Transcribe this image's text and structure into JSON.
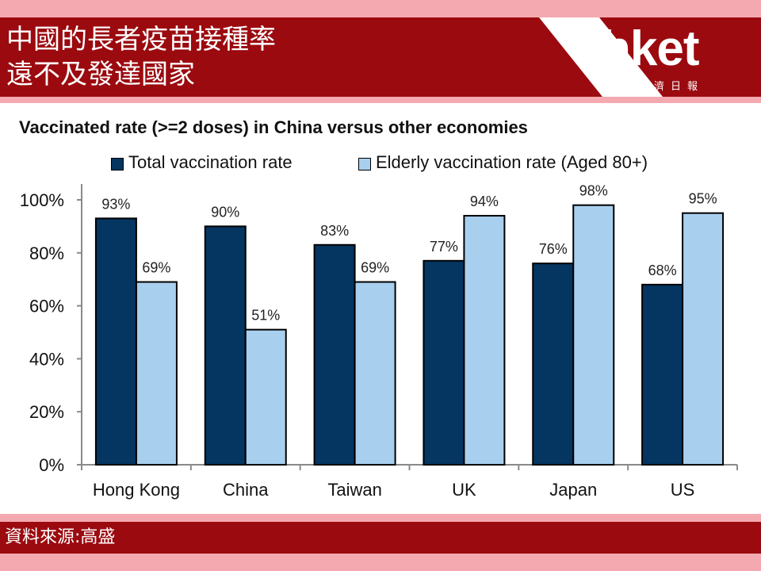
{
  "header": {
    "title_line1": "中國的長者疫苗接種率",
    "title_line2": "遠不及發達國家",
    "logo_text": "hket",
    "logo_subtext": "香港經濟日報"
  },
  "footer": {
    "source": "資料來源:高盛"
  },
  "colors": {
    "brand_red": "#9b0a0f",
    "pink": "#f4a9b0",
    "total_series": "#053561",
    "elderly_series": "#a9cfee"
  },
  "chart_data": {
    "type": "bar",
    "title": "Vaccinated rate (>=2 doses) in China versus other economies",
    "categories": [
      "Hong Kong",
      "China",
      "Taiwan",
      "UK",
      "Japan",
      "US"
    ],
    "series": [
      {
        "name": "Total vaccination rate",
        "values": [
          93,
          90,
          83,
          77,
          76,
          68
        ],
        "labels": [
          "93%",
          "90%",
          "83%",
          "77%",
          "76%",
          "68%"
        ]
      },
      {
        "name": "Elderly vaccination rate (Aged 80+)",
        "values": [
          69,
          51,
          69,
          94,
          98,
          95
        ],
        "labels": [
          "69%",
          "51%",
          "69%",
          "94%",
          "98%",
          "95%"
        ]
      }
    ],
    "ylim": [
      0,
      100
    ],
    "yticks": [
      "0%",
      "20%",
      "40%",
      "60%",
      "80%",
      "100%"
    ],
    "legend": "top",
    "grid": false
  }
}
